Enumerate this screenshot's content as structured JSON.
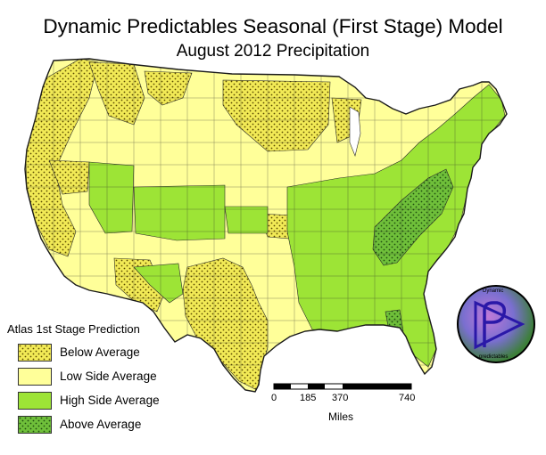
{
  "title": "Dynamic Predictables Seasonal (First Stage) Model",
  "subtitle": "August 2012 Precipitation",
  "legend": {
    "title": "Atlas 1st Stage Prediction",
    "items": [
      {
        "label": "Below Average",
        "color": "#f2ea56",
        "pattern": "dotted"
      },
      {
        "label": "Low Side Average",
        "color": "#ffff99",
        "pattern": "plain"
      },
      {
        "label": "High Side Average",
        "color": "#9de436",
        "pattern": "plain"
      },
      {
        "label": "Above Average",
        "color": "#6fbf3a",
        "pattern": "dotted"
      }
    ]
  },
  "scale_bar": {
    "ticks": [
      "0",
      "185",
      "370",
      "740"
    ],
    "units": "Miles"
  },
  "logo": {
    "top_text": "Dynamic",
    "bottom_text": "predictables",
    "icon": "play-triangle-icon"
  },
  "colors": {
    "below": "#f2ea56",
    "low_side": "#ffff99",
    "high_side": "#9de436",
    "above": "#6fbf3a",
    "border": "#2a2a2a"
  }
}
